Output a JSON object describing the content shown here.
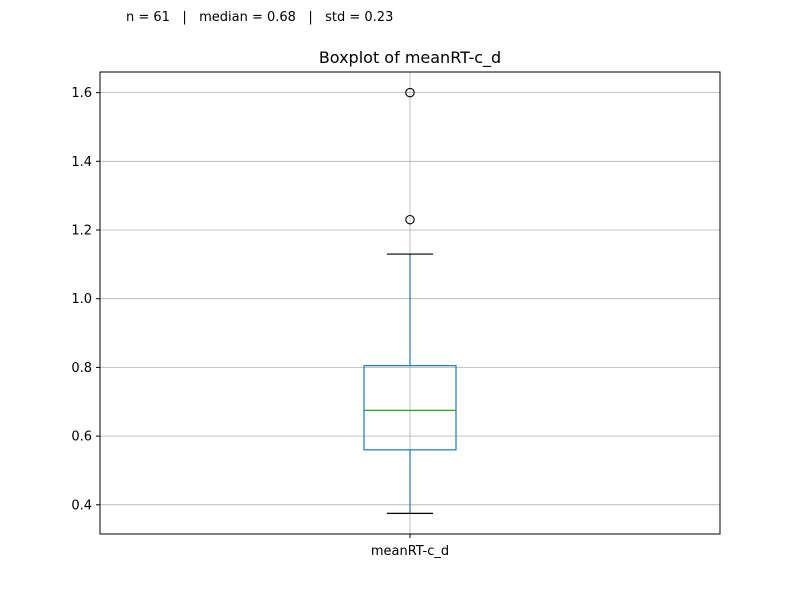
{
  "stats": {
    "text": "n = 61   |   median = 0.68   |   std = 0.23"
  },
  "chart_data": {
    "type": "box",
    "title": "Boxplot of meanRT-c_d",
    "xlabel": "",
    "ylabel": "",
    "categories": [
      "meanRT-c_d"
    ],
    "ylim": [
      0.315,
      1.66
    ],
    "yticks": [
      0.4,
      0.6,
      0.8,
      1.0,
      1.2,
      1.4,
      1.6
    ],
    "ytick_labels": [
      "0.4",
      "0.6",
      "0.8",
      "1.0",
      "1.2",
      "1.4",
      "1.6"
    ],
    "grid": true,
    "series": [
      {
        "whisker_low": 0.375,
        "q1": 0.56,
        "median": 0.675,
        "q3": 0.805,
        "whisker_high": 1.13,
        "outliers": [
          1.23,
          1.6
        ]
      }
    ],
    "colors": {
      "box": "#1f77b4",
      "median": "#2ca02c",
      "caps": "#000000",
      "grid": "#b0b0b0",
      "outlier_edge": "#000000"
    }
  }
}
